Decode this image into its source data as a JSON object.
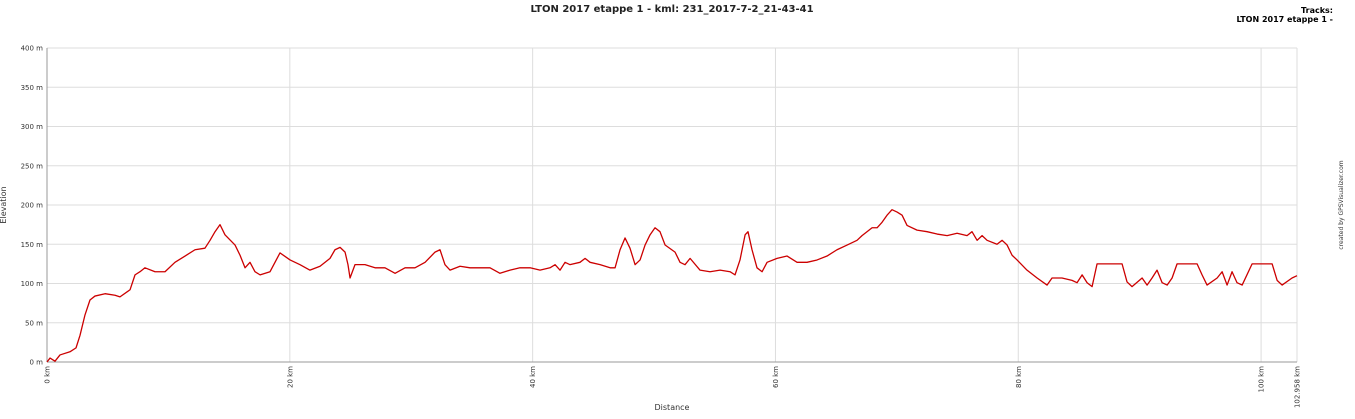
{
  "chart_data": {
    "type": "line",
    "title": "LTON 2017 etappe 1 - kml: 231_2017-7-2_21-43-41",
    "legend_title": "Tracks:",
    "x_label": "Distance",
    "y_label": "Elevation",
    "credit": "created by GPSVisualizer.com",
    "xlim": [
      0,
      102.958
    ],
    "ylim": [
      0,
      400
    ],
    "xticks": [
      {
        "value": 0,
        "label": "0 km"
      },
      {
        "value": 20,
        "label": "20 km"
      },
      {
        "value": 40,
        "label": "40 km"
      },
      {
        "value": 60,
        "label": "60 km"
      },
      {
        "value": 80,
        "label": "80 km"
      },
      {
        "value": 100,
        "label": "100 km"
      },
      {
        "value": 102.958,
        "label": "102.958 km"
      }
    ],
    "yticks": [
      {
        "value": 0,
        "label": "0 m"
      },
      {
        "value": 50,
        "label": "50 m"
      },
      {
        "value": 100,
        "label": "100 m"
      },
      {
        "value": 150,
        "label": "150 m"
      },
      {
        "value": 200,
        "label": "200 m"
      },
      {
        "value": 250,
        "label": "250 m"
      },
      {
        "value": 300,
        "label": "300 m"
      },
      {
        "value": 350,
        "label": "350 m"
      },
      {
        "value": 400,
        "label": "400 m"
      }
    ],
    "grid": true,
    "legend_position": "top-right",
    "x": [
      0,
      0.25,
      0.66,
      1.07,
      1.89,
      2.39,
      2.72,
      3.13,
      3.54,
      3.95,
      4.78,
      5.6,
      6.01,
      6.84,
      7.25,
      7.66,
      8.07,
      8.9,
      9.72,
      10.54,
      11.37,
      12.19,
      13.01,
      13.43,
      13.84,
      14.25,
      14.66,
      15.49,
      15.9,
      16.31,
      16.72,
      17.13,
      17.55,
      18.37,
      18.78,
      19.19,
      20.02,
      20.84,
      21.66,
      22.49,
      23.31,
      23.72,
      24.14,
      24.55,
      24.79,
      24.96,
      25.37,
      26.19,
      27.02,
      27.84,
      28.67,
      29.49,
      30.31,
      31.14,
      31.96,
      32.37,
      32.78,
      33.2,
      34.02,
      34.84,
      35.67,
      36.49,
      37.31,
      38.14,
      38.96,
      39.79,
      40.61,
      41.43,
      41.85,
      42.26,
      42.67,
      43.08,
      43.9,
      44.32,
      44.73,
      45.55,
      46.38,
      46.79,
      47.2,
      47.61,
      48.02,
      48.44,
      48.85,
      49.26,
      49.67,
      50.08,
      50.49,
      50.91,
      51.73,
      52.14,
      52.55,
      52.97,
      53.79,
      54.61,
      55.44,
      56.26,
      56.67,
      57.08,
      57.5,
      57.74,
      58.07,
      58.48,
      58.9,
      59.31,
      60.13,
      60.96,
      61.78,
      62.6,
      63.43,
      64.25,
      65.07,
      65.9,
      66.72,
      67.13,
      67.96,
      68.37,
      68.78,
      69.19,
      69.6,
      70.02,
      70.43,
      70.84,
      71.66,
      72.49,
      73.31,
      74.14,
      74.96,
      75.78,
      76.19,
      76.61,
      77.02,
      77.43,
      78.25,
      78.67,
      79.08,
      79.49,
      79.9,
      80.72,
      81.55,
      82.37,
      82.78,
      83.6,
      84.43,
      84.84,
      85.26,
      85.67,
      86.08,
      86.49,
      88.55,
      88.96,
      89.37,
      90.2,
      90.61,
      91.02,
      91.43,
      91.85,
      92.26,
      92.67,
      93.08,
      94.73,
      95.14,
      95.55,
      96.38,
      96.79,
      97.2,
      97.61,
      98.02,
      98.44,
      99.26,
      100.91,
      101.32,
      101.73,
      102.55,
      102.958
    ],
    "series": [
      {
        "name": "LTON 2017 etappe 1 -",
        "color": "#cc0000",
        "values": [
          0,
          5,
          1,
          9,
          13,
          18,
          34,
          60,
          79,
          84,
          87,
          85,
          83,
          92,
          111,
          115,
          120,
          115,
          115,
          127,
          135,
          143,
          145,
          155,
          166,
          175,
          162,
          149,
          136,
          120,
          127,
          115,
          111,
          115,
          127,
          139,
          130,
          124,
          117,
          122,
          132,
          143,
          146,
          140,
          124,
          107,
          124,
          124,
          120,
          120,
          113,
          120,
          120,
          127,
          140,
          143,
          124,
          117,
          122,
          120,
          120,
          120,
          113,
          117,
          120,
          120,
          117,
          120,
          124,
          117,
          127,
          124,
          127,
          132,
          127,
          124,
          120,
          120,
          143,
          158,
          145,
          124,
          130,
          149,
          162,
          171,
          166,
          149,
          140,
          127,
          124,
          132,
          117,
          115,
          117,
          115,
          111,
          130,
          162,
          166,
          143,
          120,
          115,
          127,
          132,
          135,
          127,
          127,
          130,
          135,
          143,
          149,
          155,
          161,
          171,
          171,
          178,
          187,
          194,
          191,
          187,
          174,
          168,
          166,
          163,
          161,
          164,
          161,
          166,
          155,
          161,
          155,
          150,
          155,
          149,
          136,
          130,
          117,
          107,
          98,
          107,
          107,
          104,
          101,
          111,
          101,
          96,
          125,
          125,
          102,
          96,
          107,
          98,
          107,
          117,
          101,
          98,
          107,
          125,
          125,
          111,
          98,
          107,
          115,
          98,
          115,
          101,
          98,
          125,
          125,
          104,
          98,
          107,
          110
        ]
      }
    ]
  }
}
